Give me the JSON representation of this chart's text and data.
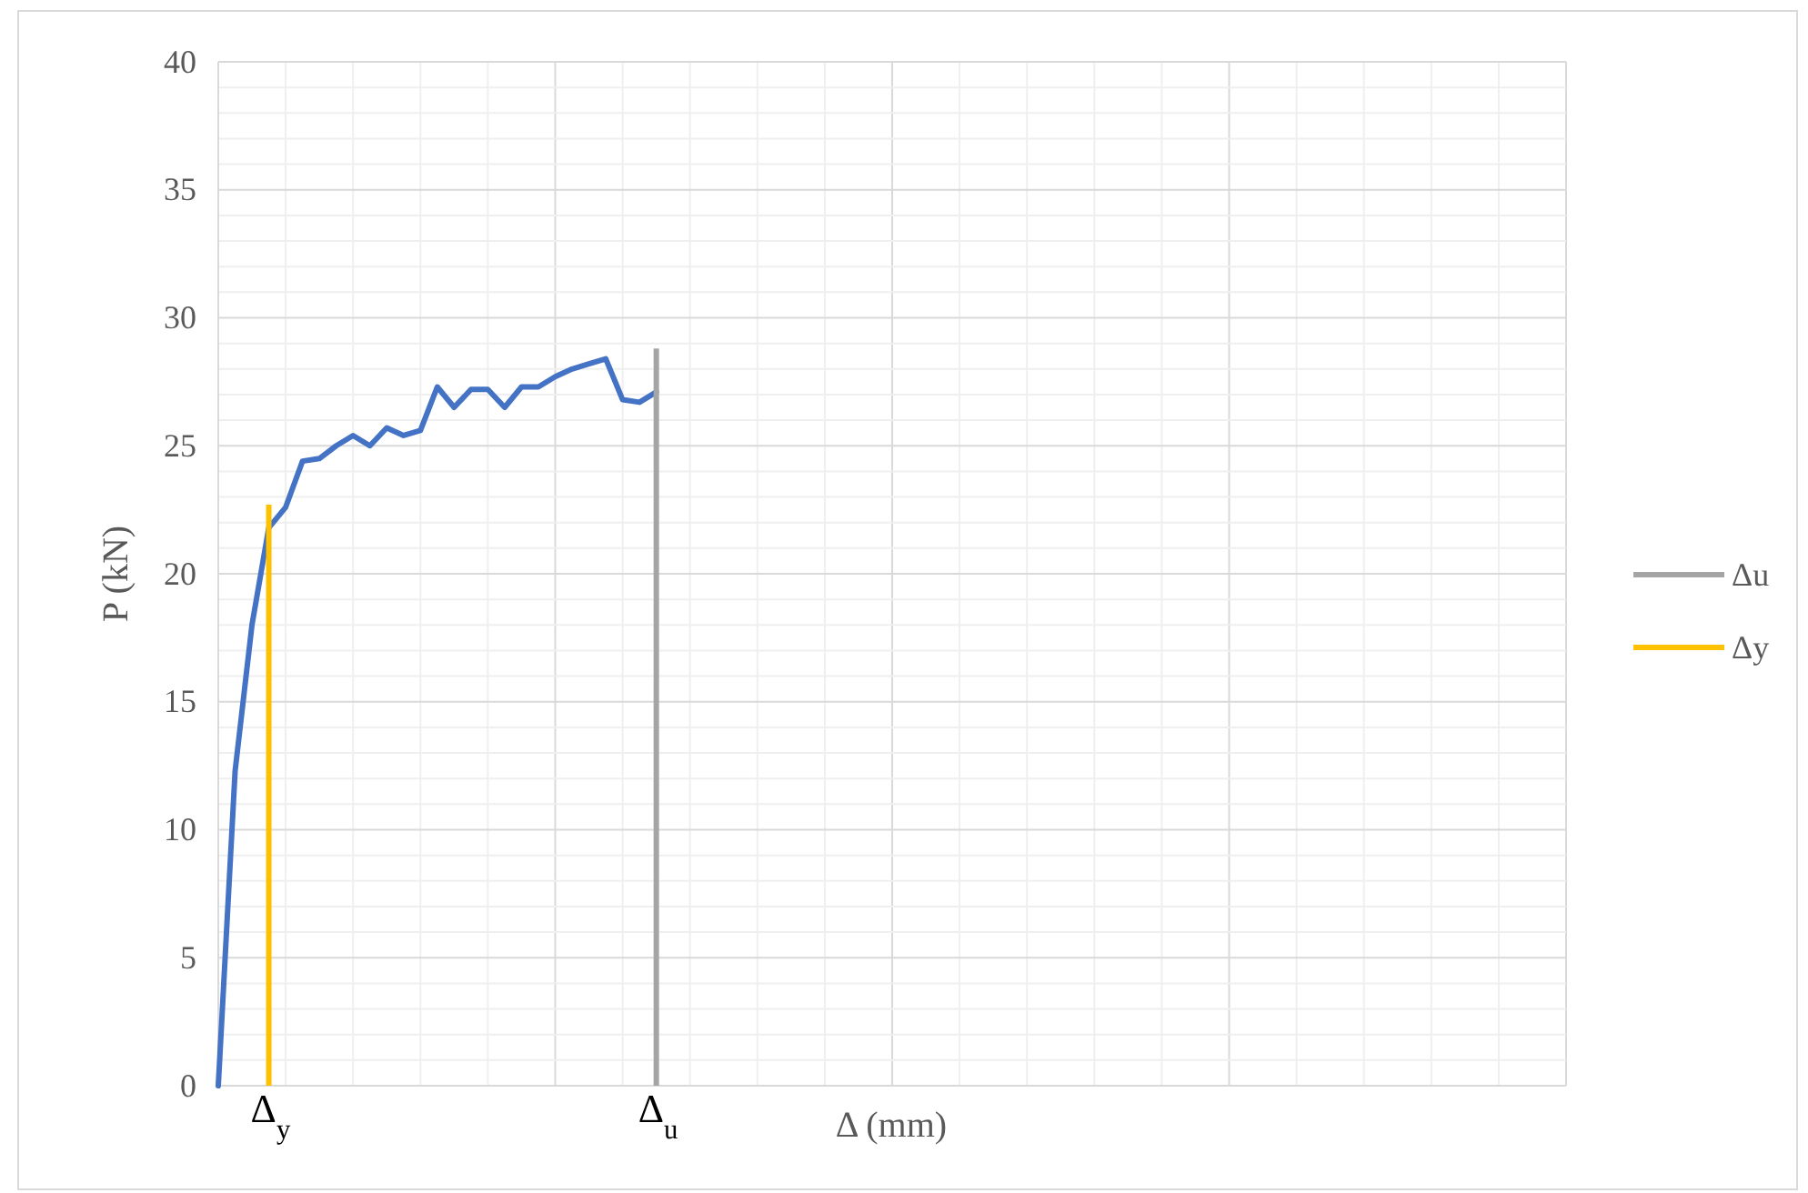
{
  "chart_data": {
    "type": "line",
    "xlabel": "Δ  (mm)",
    "ylabel": "P (kN)",
    "categories": [
      null,
      null,
      null,
      null,
      null,
      null,
      null,
      null,
      null,
      null,
      null,
      null,
      null,
      null,
      null,
      null,
      null,
      null,
      null,
      null,
      null,
      null,
      null,
      null,
      null,
      null,
      null,
      null,
      null,
      null,
      null,
      null,
      null,
      null,
      null,
      null,
      null,
      null,
      null,
      null,
      null,
      null,
      null,
      null,
      null,
      null,
      null,
      null,
      null,
      null,
      null,
      null,
      null,
      null,
      null,
      null,
      null,
      null,
      null,
      null,
      null,
      null,
      null,
      null,
      null,
      null,
      null,
      null,
      null,
      null,
      null,
      null,
      null,
      null,
      null,
      null,
      null,
      null,
      null,
      null,
      null
    ],
    "ylim": [
      0,
      40
    ],
    "yticks": [
      0,
      5,
      10,
      15,
      20,
      25,
      30,
      35,
      40
    ],
    "grid": true,
    "legend": "right",
    "marker": "none",
    "line_style": "solid",
    "series": [
      {
        "color": "#4472c4",
        "values": [
          0,
          12.3,
          18.0,
          21.8,
          22.6,
          24.4,
          24.5,
          25.0,
          25.4,
          25.0,
          25.7,
          25.4,
          25.6,
          27.3,
          26.5,
          27.2,
          27.2,
          26.5,
          27.3,
          27.3,
          27.7,
          28.0,
          28.2,
          28.4,
          26.8,
          26.7,
          27.1,
          null,
          null,
          null,
          null,
          null,
          null,
          null,
          null,
          null,
          null,
          null,
          null,
          null,
          null,
          null,
          null,
          null,
          null,
          null,
          null,
          null,
          null,
          null,
          null,
          null,
          null,
          null,
          null,
          null,
          null,
          null,
          null,
          null,
          null,
          null,
          null,
          null,
          null,
          null,
          null,
          null,
          null,
          null,
          null,
          null,
          null,
          null,
          null,
          null,
          null,
          null,
          null,
          null,
          null
        ]
      },
      {
        "name": "Δu",
        "type": "bar",
        "color": "#a5a5a5",
        "values": [
          null,
          null,
          null,
          null,
          null,
          null,
          null,
          null,
          null,
          null,
          null,
          null,
          null,
          null,
          null,
          null,
          null,
          null,
          null,
          null,
          null,
          null,
          null,
          null,
          null,
          null,
          28.8,
          null,
          null,
          null,
          null,
          null,
          null,
          null,
          null,
          null,
          null,
          null,
          null,
          null,
          null,
          null,
          null,
          null,
          null,
          null,
          null,
          null,
          null,
          null,
          null,
          null,
          null,
          null,
          null,
          null,
          null,
          null,
          null,
          null,
          null,
          null,
          null,
          null,
          null,
          null,
          null,
          null,
          null,
          null,
          null,
          null,
          null,
          null,
          null,
          null,
          null,
          null,
          null,
          null,
          null
        ]
      },
      {
        "name": "Δy",
        "type": "bar",
        "color": "#ffc000",
        "values": [
          null,
          null,
          null,
          22.7,
          null,
          null,
          null,
          null,
          null,
          null,
          null,
          null,
          null,
          null,
          null,
          null,
          null,
          null,
          null,
          null,
          null,
          null,
          null,
          null,
          null,
          null,
          null,
          null,
          null,
          null,
          null,
          null,
          null,
          null,
          null,
          null,
          null,
          null,
          null,
          null,
          null,
          null,
          null,
          null,
          null,
          null,
          null,
          null,
          null,
          null,
          null,
          null,
          null,
          null,
          null,
          null,
          null,
          null,
          null,
          null,
          null,
          null,
          null,
          null,
          null,
          null,
          null,
          null,
          null,
          null,
          null,
          null,
          null,
          null,
          null,
          null,
          null,
          null,
          null,
          null,
          null
        ]
      }
    ],
    "annotations": [
      "Δ$_{u}$",
      "Δ$_{y}$"
    ]
  }
}
